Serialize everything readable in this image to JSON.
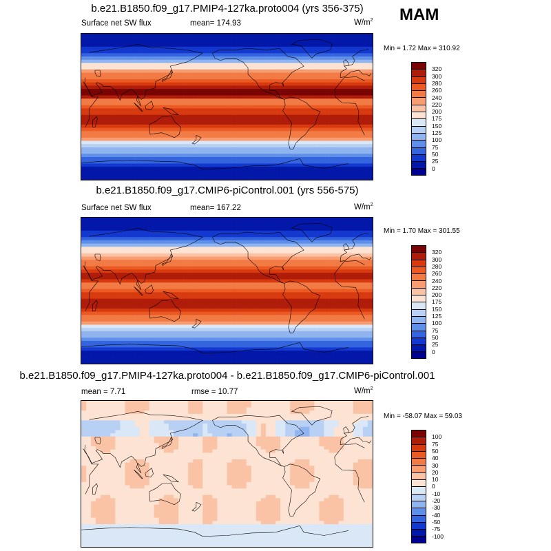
{
  "season": "MAM",
  "panels": [
    {
      "title": "b.e21.B1850.f09_g17.PMIP4-127ka.proto004 (yrs 356-375)",
      "left_label": "Surface net SW flux",
      "center_label": "mean= 174.93",
      "unit": "W/m",
      "unit_sup": "2",
      "minmax": "Min =   1.72 Max = 310.92",
      "colorbar": {
        "labels": [
          "320",
          "300",
          "280",
          "260",
          "240",
          "220",
          "200",
          "175",
          "150",
          "125",
          "100",
          "75",
          "50",
          "25",
          "0"
        ],
        "colors": [
          "#7a0403",
          "#b01c0a",
          "#d83a10",
          "#ea5a22",
          "#f27b45",
          "#f89c72",
          "#fbc3a5",
          "#fde3d3",
          "#d9e7f7",
          "#b8d0f3",
          "#90b4ef",
          "#5f8fe8",
          "#3465df",
          "#1338cf",
          "#0318a8",
          "#000090"
        ]
      },
      "field": "abs"
    },
    {
      "title": "b.e21.B1850.f09_g17.CMIP6-piControl.001 (yrs 556-575)",
      "left_label": "Surface net SW flux",
      "center_label": "mean= 167.22",
      "unit": "W/m",
      "unit_sup": "2",
      "minmax": "Min =   1.70 Max = 301.55",
      "colorbar": {
        "labels": [
          "320",
          "300",
          "280",
          "260",
          "240",
          "220",
          "200",
          "175",
          "150",
          "125",
          "100",
          "75",
          "50",
          "25",
          "0"
        ],
        "colors": [
          "#7a0403",
          "#b01c0a",
          "#d83a10",
          "#ea5a22",
          "#f27b45",
          "#f89c72",
          "#fbc3a5",
          "#fde3d3",
          "#d9e7f7",
          "#b8d0f3",
          "#90b4ef",
          "#5f8fe8",
          "#3465df",
          "#1338cf",
          "#0318a8",
          "#000090"
        ]
      },
      "field": "abs"
    },
    {
      "title": "b.e21.B1850.f09_g17.PMIP4-127ka.proto004 - b.e21.B1850.f09_g17.CMIP6-piControl.001",
      "left_label": "mean =   7.71",
      "center_label": "rmse =  10.77",
      "unit": "W/m",
      "unit_sup": "2",
      "minmax": "Min = -58.07 Max =  59.03",
      "colorbar": {
        "labels": [
          "100",
          "75",
          "50",
          "40",
          "30",
          "20",
          "10",
          "0",
          "-10",
          "-20",
          "-30",
          "-40",
          "-50",
          "-75",
          "-100"
        ],
        "colors": [
          "#7a0403",
          "#b01c0a",
          "#d83a10",
          "#ea5a22",
          "#f27b45",
          "#f89c72",
          "#fbc3a5",
          "#fde3d3",
          "#d9e7f7",
          "#b8d0f3",
          "#90b4ef",
          "#5f8fe8",
          "#3465df",
          "#1338cf",
          "#0318a8",
          "#000090"
        ]
      },
      "field": "diff"
    }
  ]
}
